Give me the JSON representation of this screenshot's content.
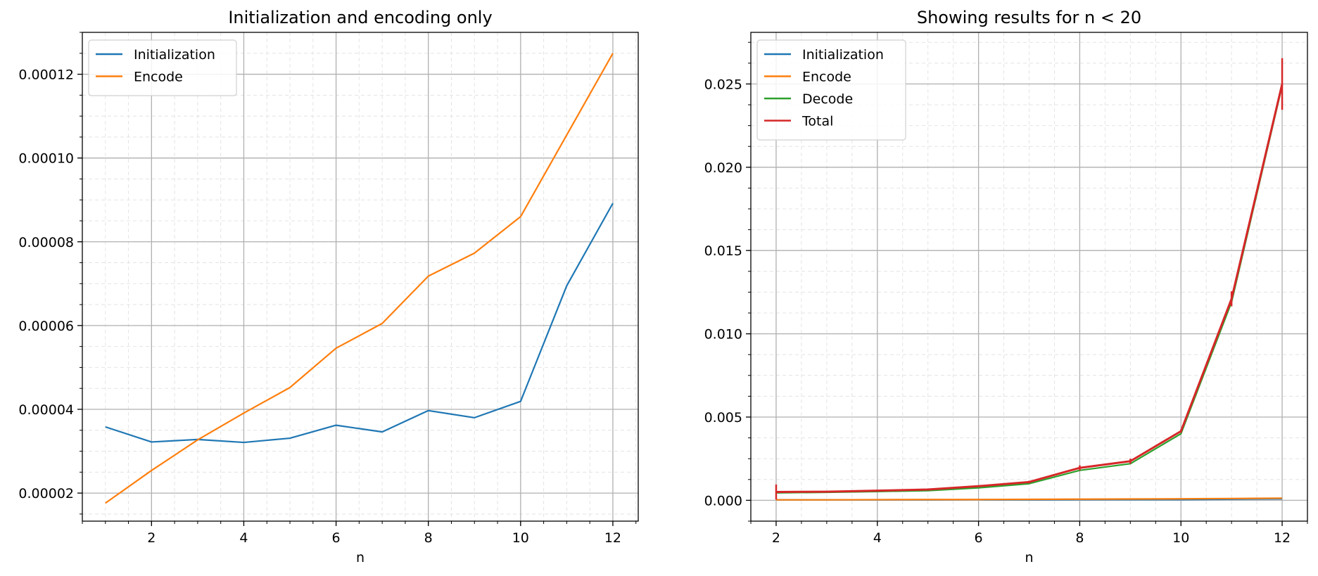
{
  "chart_data": [
    {
      "type": "line",
      "title": "Initialization and encoding only",
      "xlabel": "n",
      "ylabel": "",
      "x": [
        1,
        2,
        3,
        4,
        5,
        6,
        7,
        8,
        9,
        10,
        11,
        12
      ],
      "xlim": [
        0.5,
        12.55
      ],
      "ylim": [
        1.33e-05,
        0.00013
      ],
      "xticks": [
        2,
        4,
        6,
        8,
        10,
        12
      ],
      "xtick_labels": [
        "2",
        "4",
        "6",
        "8",
        "10",
        "12"
      ],
      "yticks": [
        2e-05,
        4e-05,
        6e-05,
        8e-05,
        0.0001,
        0.00012
      ],
      "ytick_labels": [
        "0.00002",
        "0.00004",
        "0.00006",
        "0.00008",
        "0.00010",
        "0.00012"
      ],
      "grid": true,
      "legend_position": "upper-left",
      "series": [
        {
          "name": "Initialization",
          "color": "#1f77b4",
          "values": [
            3.58e-05,
            3.22e-05,
            3.28e-05,
            3.21e-05,
            3.31e-05,
            3.62e-05,
            3.46e-05,
            3.97e-05,
            3.8e-05,
            4.19e-05,
            6.95e-05,
            8.92e-05
          ]
        },
        {
          "name": "Encode",
          "color": "#ff7f0e",
          "values": [
            1.76e-05,
            2.54e-05,
            3.27e-05,
            3.91e-05,
            4.52e-05,
            5.46e-05,
            6.05e-05,
            7.18e-05,
            7.73e-05,
            8.6e-05,
            0.0001055,
            0.000125
          ]
        }
      ]
    },
    {
      "type": "line",
      "title": "Showing results for n < 20",
      "xlabel": "n",
      "ylabel": "",
      "x": [
        2,
        3,
        4,
        5,
        6,
        7,
        8,
        9,
        10,
        11,
        12
      ],
      "xlim": [
        1.5,
        12.5
      ],
      "ylim": [
        -0.00125,
        0.0281
      ],
      "xticks": [
        2,
        4,
        6,
        8,
        10,
        12
      ],
      "xtick_labels": [
        "2",
        "4",
        "6",
        "8",
        "10",
        "12"
      ],
      "yticks": [
        0.0,
        0.005,
        0.01,
        0.015,
        0.02,
        0.025
      ],
      "ytick_labels": [
        "0.000",
        "0.005",
        "0.010",
        "0.015",
        "0.020",
        "0.025"
      ],
      "grid": true,
      "legend_position": "upper-left",
      "series": [
        {
          "name": "Initialization",
          "color": "#1f77b4",
          "values": [
            3e-05,
            3e-05,
            3e-05,
            3e-05,
            4e-05,
            3e-05,
            4e-05,
            4e-05,
            4e-05,
            7e-05,
            9e-05
          ]
        },
        {
          "name": "Encode",
          "color": "#ff7f0e",
          "values": [
            3e-05,
            3e-05,
            4e-05,
            5e-05,
            5e-05,
            6e-05,
            7e-05,
            8e-05,
            9e-05,
            0.00011,
            0.00013
          ]
        },
        {
          "name": "Decode",
          "color": "#2ca02c",
          "values": [
            0.00045,
            0.00048,
            0.00053,
            0.00058,
            0.00075,
            0.001,
            0.0018,
            0.0022,
            0.004,
            0.0119,
            0.0249
          ]
        },
        {
          "name": "Total",
          "color": "#d62728",
          "values": [
            0.0005,
            0.00052,
            0.00058,
            0.00065,
            0.00085,
            0.0011,
            0.00195,
            0.00235,
            0.00415,
            0.0121,
            0.025
          ],
          "errors": [
            0.00045,
            5e-05,
            5e-05,
            5e-05,
            5e-05,
            8e-05,
            0.00015,
            0.00015,
            0.0001,
            0.00045,
            0.00155
          ]
        }
      ]
    }
  ]
}
